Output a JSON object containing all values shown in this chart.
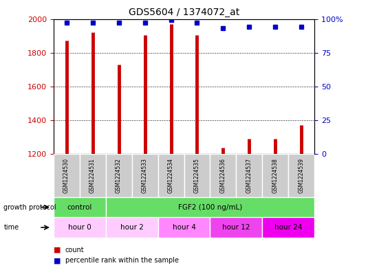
{
  "title": "GDS5604 / 1374072_at",
  "samples": [
    "GSM1224530",
    "GSM1224531",
    "GSM1224532",
    "GSM1224533",
    "GSM1224534",
    "GSM1224535",
    "GSM1224536",
    "GSM1224537",
    "GSM1224538",
    "GSM1224539"
  ],
  "counts": [
    1870,
    1920,
    1730,
    1905,
    1970,
    1905,
    1235,
    1290,
    1290,
    1370
  ],
  "percentile_ranks": [
    97,
    97,
    97,
    97,
    99,
    97,
    93,
    94,
    94,
    94
  ],
  "ylim_left": [
    1200,
    2000
  ],
  "ylim_right": [
    0,
    100
  ],
  "yticks_left": [
    1200,
    1400,
    1600,
    1800,
    2000
  ],
  "yticks_right": [
    0,
    25,
    50,
    75,
    100
  ],
  "bar_color": "#cc0000",
  "dot_color": "#0000cc",
  "growth_protocol_label": "growth protocol",
  "time_label": "time",
  "groups": [
    {
      "label": "control",
      "color": "#66dd66",
      "span": [
        0,
        2
      ]
    },
    {
      "label": "FGF2 (100 ng/mL)",
      "color": "#66dd66",
      "span": [
        2,
        10
      ]
    }
  ],
  "time_groups": [
    {
      "label": "hour 0",
      "color": "#ffccff",
      "span": [
        0,
        2
      ]
    },
    {
      "label": "hour 2",
      "color": "#ffccff",
      "span": [
        2,
        4
      ]
    },
    {
      "label": "hour 4",
      "color": "#ff88ff",
      "span": [
        4,
        6
      ]
    },
    {
      "label": "hour 12",
      "color": "#ee44ee",
      "span": [
        6,
        8
      ]
    },
    {
      "label": "hour 24",
      "color": "#ee00ee",
      "span": [
        8,
        10
      ]
    }
  ],
  "legend_count_color": "#cc0000",
  "legend_pct_color": "#0000cc",
  "bg_color": "#ffffff",
  "grid_color": "#000000",
  "tick_color_left": "#cc0000",
  "tick_color_right": "#0000cc",
  "sample_cell_color": "#cccccc",
  "n_samples": 10
}
